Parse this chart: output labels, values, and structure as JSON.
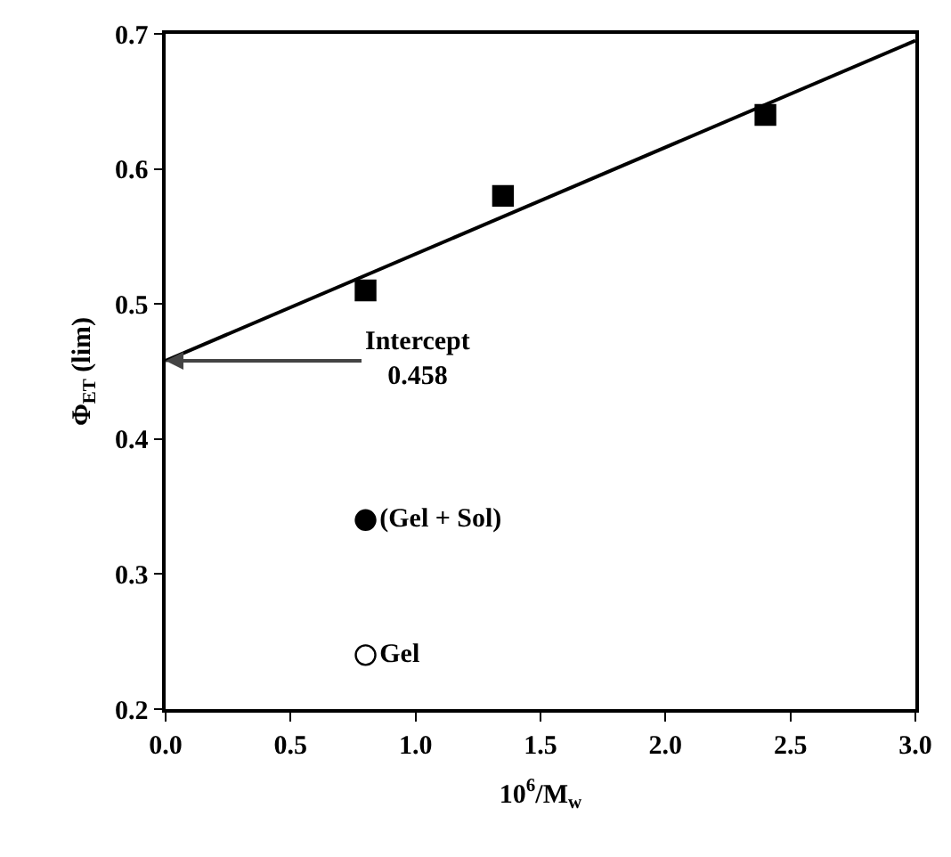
{
  "chart_data": {
    "type": "scatter",
    "xlabel": "10$^{6}$/M$_{w}$",
    "ylabel": "Φ$_{ET}$ (lim)",
    "series": [
      {
        "color": "#000000",
        "x": [
          0.8,
          1.35,
          2.4
        ],
        "values": [
          0.51,
          0.58,
          0.64
        ],
        "marker": "square"
      },
      {
        "type": "line",
        "color": "#000000",
        "x": [
          0,
          3
        ],
        "values": [
          0.458,
          0.695
        ],
        "line_style": "solid",
        "marker": "none"
      },
      {
        "name": "(Gel + Sol)",
        "color": "#000000",
        "x": [
          0.8
        ],
        "values": [
          0.34
        ],
        "marker": "circle"
      },
      {
        "name": "Gel",
        "color": "#ffffff",
        "x": [
          0.8
        ],
        "values": [
          0.24
        ],
        "marker": "circle"
      }
    ],
    "annotations": [
      {
        "text": "Intercept\n0.458",
        "x": 0,
        "y": 0.458
      }
    ],
    "xlim": [
      0,
      3
    ],
    "ylim": [
      0.2,
      0.7
    ],
    "xticks": [
      {
        "value": 0,
        "label": "0.0"
      },
      0.5,
      {
        "value": 1,
        "label": "1.0"
      },
      1.5,
      {
        "value": 2,
        "label": "2.0"
      },
      2.5,
      {
        "value": 3,
        "label": "3.0"
      }
    ],
    "yticks": [
      0.2,
      0.3,
      0.4,
      0.5,
      0.6,
      0.7
    ],
    "grid": false,
    "legend": false
  }
}
